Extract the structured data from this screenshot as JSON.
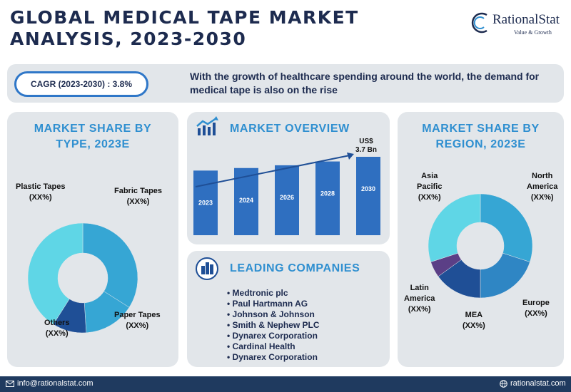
{
  "header": {
    "title_line1": "GLOBAL MEDICAL TAPE MARKET",
    "title_line2": "ANALYSIS, 2023-2030",
    "logo_name": "RationalStat",
    "logo_tagline": "Value & Growth"
  },
  "banner": {
    "cagr_label": "CAGR (2023-2030) : 3.8%",
    "text": "With the growth of healthcare spending around the world, the demand for medical tape is also on the rise"
  },
  "type_panel": {
    "title_line1": "MARKET SHARE BY",
    "title_line2": "TYPE, 2023E"
  },
  "overview_panel": {
    "title": "MARKET OVERVIEW",
    "value_line1": "US$",
    "value_line2": "3.7 Bn"
  },
  "region_panel": {
    "title_line1": "MARKET SHARE BY",
    "title_line2": "REGION, 2023E"
  },
  "companies_panel": {
    "title": "LEADING COMPANIES",
    "items": [
      "Medtronic plc",
      "Paul Hartmann AG",
      "Johnson & Johnson",
      "Smith & Nephew PLC",
      "Dynarex Corporation",
      "Cardinal Health",
      "Dynarex Corporation"
    ]
  },
  "footer": {
    "email": "info@rationalstat.com",
    "website": "rationalstat.com"
  },
  "colors": {
    "navy": "#1d2b4f",
    "accent_blue": "#2f8fd0",
    "bar_blue": "#2f6fc0",
    "cyan": "#5fd6e6",
    "mid_blue": "#36a6d4",
    "dark_blue": "#1f4f96",
    "purple": "#5b3f86"
  },
  "chart_data": [
    {
      "type": "pie",
      "labels": [
        "Fabric Tapes",
        "Paper Tapes",
        "Others",
        "Plastic Tapes"
      ],
      "label_values": [
        "(XX%)",
        "(XX%)",
        "(XX%)",
        "(XX%)"
      ],
      "values": [
        34,
        15,
        10,
        41
      ],
      "colors": [
        "#36a6d4",
        "#36a6d4",
        "#1f4f96",
        "#5fd6e6"
      ]
    },
    {
      "type": "bar",
      "categories": [
        "2023",
        "2024",
        "2026",
        "2028",
        "2030"
      ],
      "values": [
        3.05,
        3.17,
        3.3,
        3.48,
        3.7
      ],
      "ylim": [
        0,
        3.7
      ],
      "annotation": "US$ 3.7 Bn",
      "trend_arrow": true
    },
    {
      "type": "pie",
      "labels": [
        "North America",
        "Europe",
        "MEA",
        "Latin America",
        "Asia Pacific"
      ],
      "label_values": [
        "(XX%)",
        "(XX%)",
        "(XX%)",
        "(XX%)",
        "(XX%)"
      ],
      "values": [
        30,
        20,
        15,
        5,
        30
      ],
      "colors": [
        "#36a6d4",
        "#2f86c4",
        "#1f4f96",
        "#5b3f86",
        "#5fd6e6"
      ]
    }
  ]
}
